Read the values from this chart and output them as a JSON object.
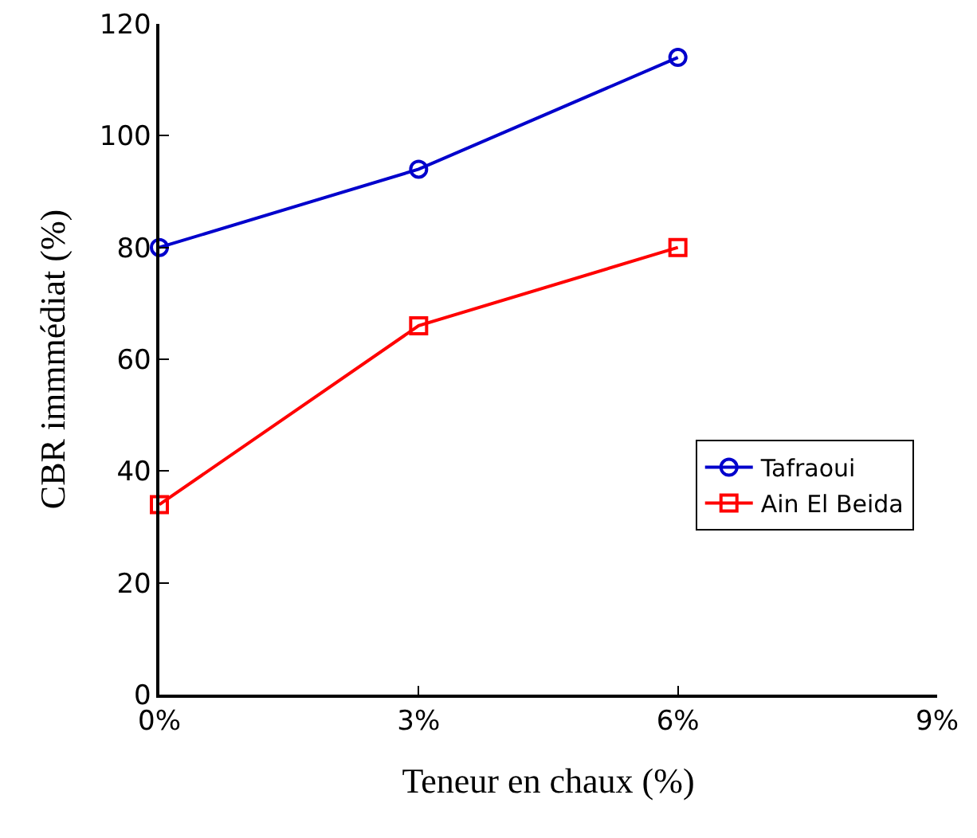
{
  "chart_data": {
    "type": "line",
    "xlabel": "Teneur en chaux (%)",
    "ylabel": "CBR immmédiat (%)",
    "x": [
      0,
      3,
      6
    ],
    "series": [
      {
        "name": "Tafraoui",
        "color": "#0000cc",
        "values": [
          80,
          94,
          114
        ],
        "marker": "circle"
      },
      {
        "name": "Ain El Beida",
        "color": "#ff0000",
        "values": [
          34,
          66,
          80
        ],
        "marker": "square"
      }
    ],
    "xlim": [
      0,
      9
    ],
    "xticks": [
      {
        "value": 0,
        "label": "0%"
      },
      {
        "value": 3,
        "label": "3%"
      },
      {
        "value": 6,
        "label": "6%"
      },
      {
        "value": 9,
        "label": "9%"
      }
    ],
    "ylim": [
      0,
      120
    ],
    "yticks": [
      0,
      20,
      40,
      60,
      80,
      100,
      120
    ],
    "grid": false,
    "legend": "right",
    "line_style": "solid"
  }
}
